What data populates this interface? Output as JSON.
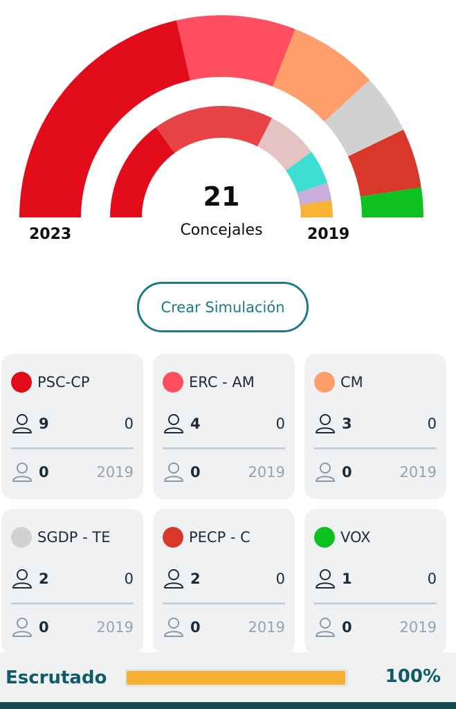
{
  "chart_data": {
    "type": "pie",
    "title": "",
    "total_seats": "21",
    "seats_label": "Concejales",
    "rings": [
      {
        "year": "2023",
        "series": [
          {
            "name": "PSC-CP",
            "value": 9,
            "color": "#e20b1a"
          },
          {
            "name": "ERC - AM",
            "value": 4,
            "color": "#fd4f5f"
          },
          {
            "name": "CM",
            "value": 3,
            "color": "#fe9f6b"
          },
          {
            "name": "SGDP - TE",
            "value": 2,
            "color": "#d1d1d1"
          },
          {
            "name": "PECP - C",
            "value": 2,
            "color": "#d7382a"
          },
          {
            "name": "VOX",
            "value": 1,
            "color": "#0cc120"
          }
        ]
      },
      {
        "year": "2019",
        "series": [
          {
            "name": "",
            "value": 6,
            "color": "#e20b1a"
          },
          {
            "name": "",
            "value": 7,
            "color": "#e84344"
          },
          {
            "name": "",
            "value": 3,
            "color": "#e6c3c3"
          },
          {
            "name": "",
            "value": 2,
            "color": "#3ddfd2"
          },
          {
            "name": "",
            "value": 1,
            "color": "#c9addb"
          },
          {
            "name": "",
            "value": 1,
            "color": "#f8b335"
          }
        ]
      }
    ]
  },
  "labels": {
    "year_left": "2023",
    "year_right": "2019",
    "total": "21",
    "total_label": "Concejales",
    "sim_button": "Crear Simulación"
  },
  "parties": [
    {
      "name": "PSC-CP",
      "color": "#e20b1a",
      "seats": "9",
      "change": "0",
      "prev_seats": "0",
      "prev_year": "2019"
    },
    {
      "name": "ERC - AM",
      "color": "#fd4f5f",
      "seats": "4",
      "change": "0",
      "prev_seats": "0",
      "prev_year": "2019"
    },
    {
      "name": "CM",
      "color": "#fe9f6b",
      "seats": "3",
      "change": "0",
      "prev_seats": "0",
      "prev_year": "2019"
    },
    {
      "name": "SGDP - TE",
      "color": "#d1d1d1",
      "seats": "2",
      "change": "0",
      "prev_seats": "0",
      "prev_year": "2019"
    },
    {
      "name": "PECP - C",
      "color": "#d7382a",
      "seats": "2",
      "change": "0",
      "prev_seats": "0",
      "prev_year": "2019"
    },
    {
      "name": "VOX",
      "color": "#0cc120",
      "seats": "1",
      "change": "0",
      "prev_seats": "0",
      "prev_year": "2019"
    }
  ],
  "footer": {
    "label": "Escrutado",
    "percent": "100%",
    "progress": 1.0,
    "bar_color": "#f5b133"
  },
  "icons": {
    "user": "user-icon"
  }
}
